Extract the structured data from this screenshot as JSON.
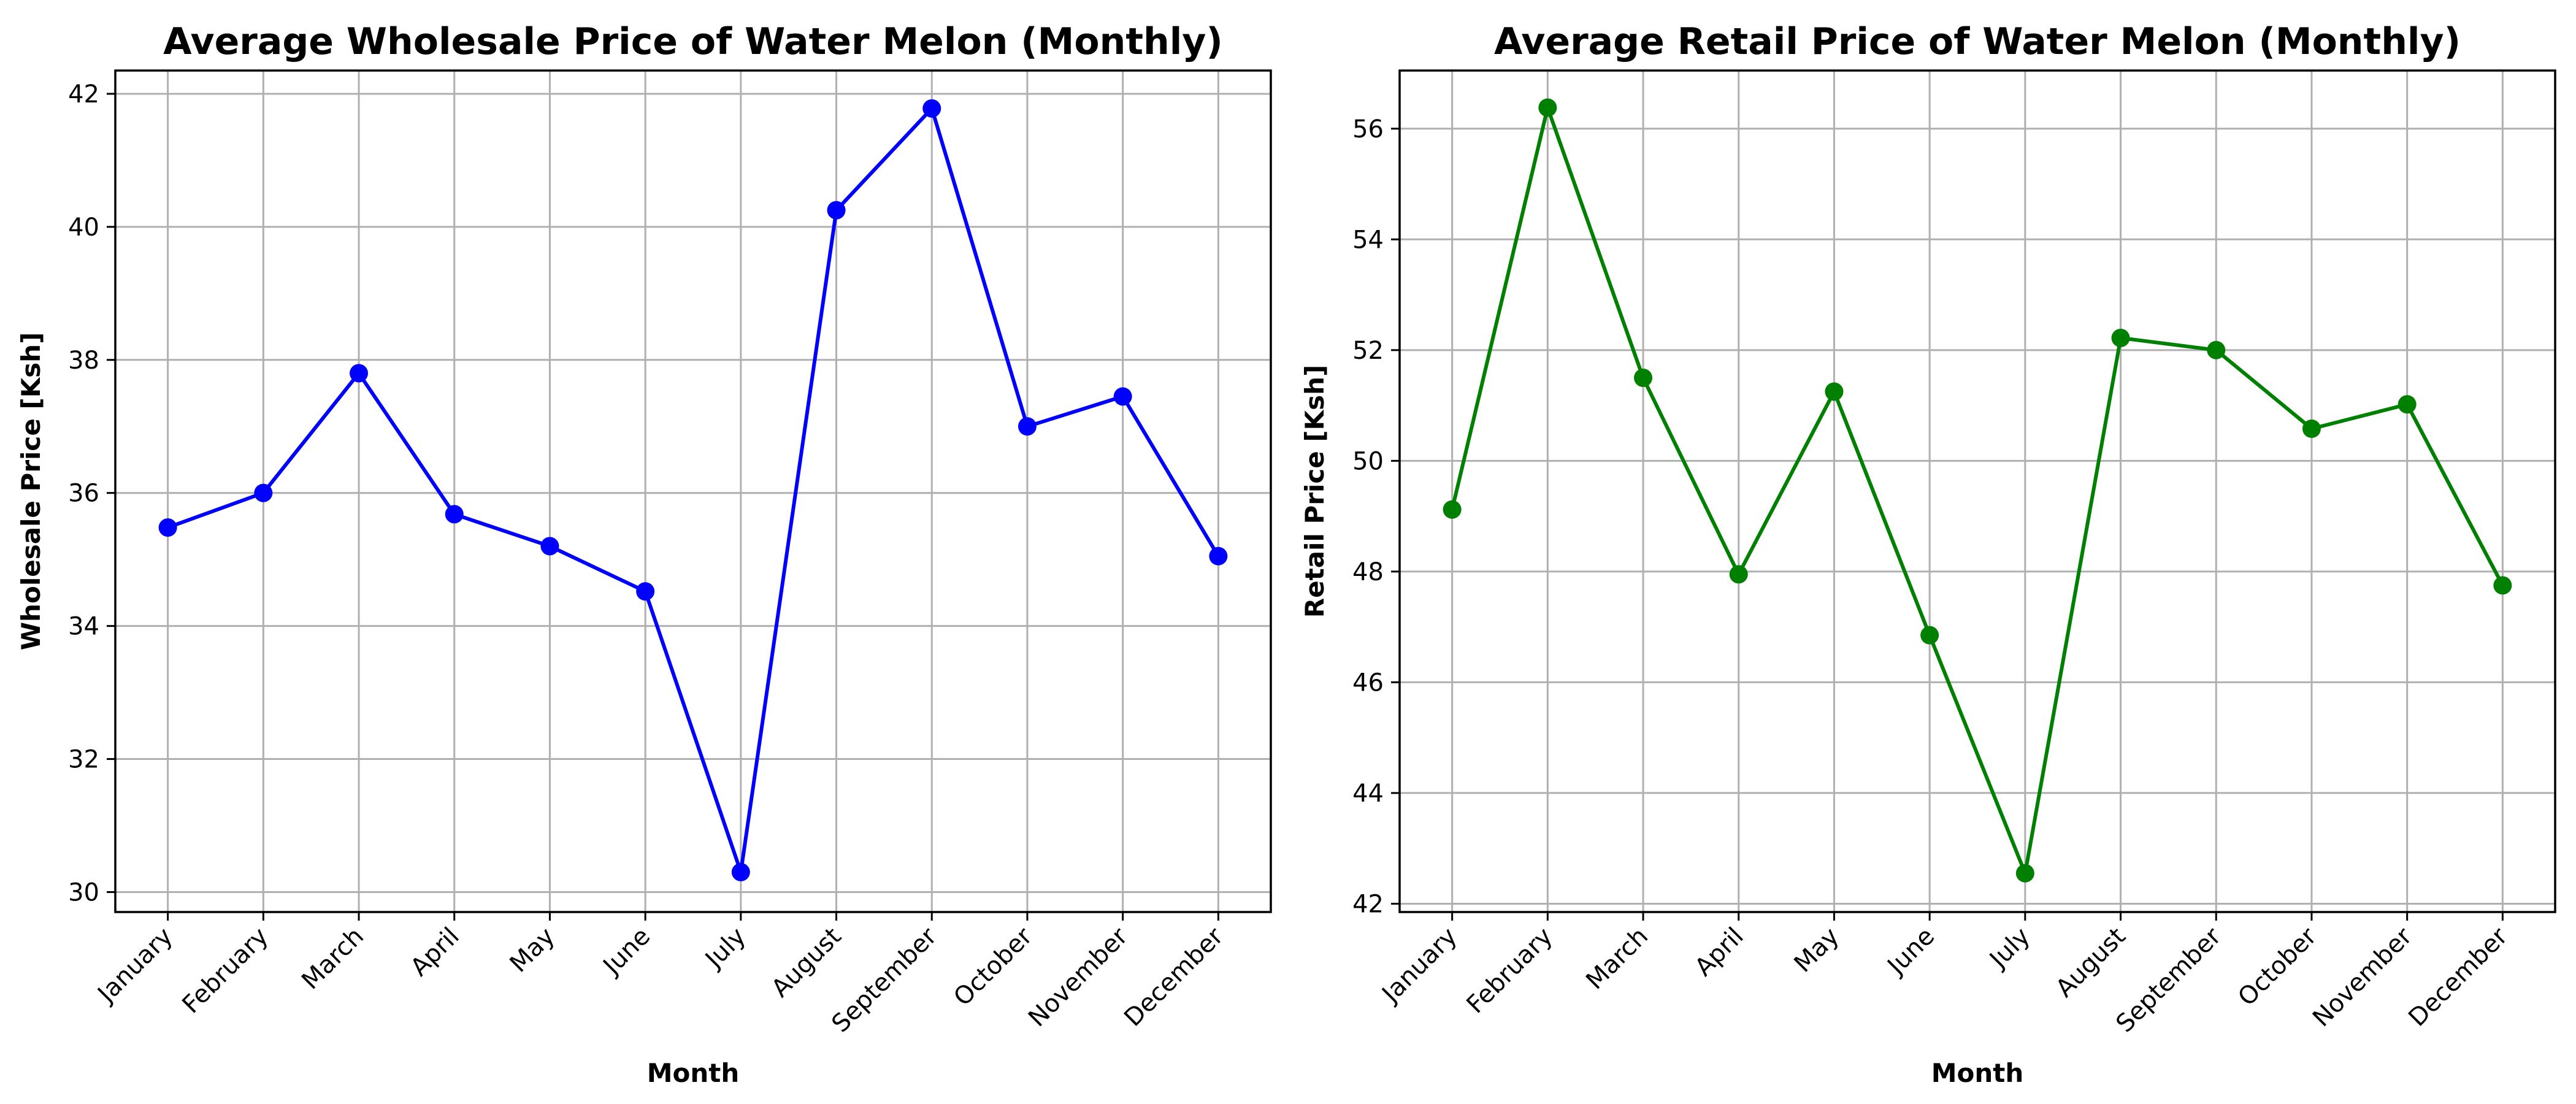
{
  "chart_data": [
    {
      "type": "line",
      "title": "Average Wholesale Price of Water Melon (Monthly)",
      "xlabel": "Month",
      "ylabel": "Wholesale Price [Ksh]",
      "categories": [
        "January",
        "February",
        "March",
        "April",
        "May",
        "June",
        "July",
        "August",
        "September",
        "October",
        "November",
        "December"
      ],
      "series": [
        {
          "values": [
            35.48,
            36.0,
            37.8,
            35.68,
            35.2,
            34.52,
            30.3,
            40.25,
            41.78,
            37.0,
            37.45,
            35.05
          ],
          "color": "#0000ff"
        }
      ],
      "ylim": [
        29.7,
        42.35
      ],
      "yticks": [
        30,
        32,
        34,
        36,
        38,
        40,
        42
      ],
      "grid": true,
      "marker": "circle"
    },
    {
      "type": "line",
      "title": "Average Retail Price of Water Melon (Monthly)",
      "xlabel": "Month",
      "ylabel": "Retail Price [Ksh]",
      "categories": [
        "January",
        "February",
        "March",
        "April",
        "May",
        "June",
        "July",
        "August",
        "September",
        "October",
        "November",
        "December"
      ],
      "series": [
        {
          "values": [
            49.12,
            56.38,
            51.5,
            47.95,
            51.25,
            46.85,
            42.55,
            52.22,
            52.0,
            50.58,
            51.02,
            47.75
          ],
          "color": "#008000"
        }
      ],
      "ylim": [
        41.85,
        57.05
      ],
      "yticks": [
        42,
        44,
        46,
        48,
        50,
        52,
        54,
        56
      ],
      "grid": true,
      "marker": "circle"
    }
  ]
}
